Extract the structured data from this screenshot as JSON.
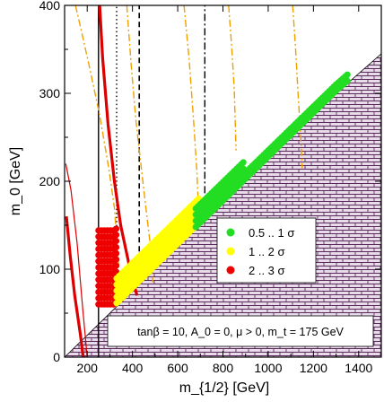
{
  "chart_data": {
    "type": "scatter",
    "title": "",
    "xlabel": "m_{1/2} [GeV]",
    "ylabel": "m_0 [GeV]",
    "xlim": [
      100,
      1500
    ],
    "ylim": [
      0,
      400
    ],
    "xticks": [
      200,
      400,
      600,
      800,
      1000,
      1200,
      1400
    ],
    "yticks": [
      0,
      100,
      200,
      300,
      400
    ],
    "xtick_labels": [
      "200",
      "400",
      "600",
      "800",
      "1000",
      "1200",
      "1400"
    ],
    "ytick_labels": [
      "0",
      "100",
      "200",
      "300",
      "400"
    ],
    "grid": false,
    "legend_position": "center-right",
    "legend": [
      {
        "label": "0.5 .. 1 σ",
        "color": "#22dd22"
      },
      {
        "label": "1 .. 2 σ",
        "color": "#ffff00"
      },
      {
        "label": "2 .. 3 σ",
        "color": "#ee0000"
      }
    ],
    "annotation": "tanβ = 10, A_0 = 0, μ > 0, m_t = 175 GeV",
    "excluded_region": {
      "description": "charged LSP region (hatched)",
      "fill": "#e9dcea",
      "boundary_x": [
        100,
        220,
        400,
        700,
        1000,
        1300,
        1500
      ],
      "boundary_y": [
        0,
        30,
        75,
        150,
        225,
        300,
        345
      ]
    },
    "series": [
      {
        "color": "#ee0000",
        "x_range": [
          250,
          330
        ],
        "y_range": [
          60,
          150
        ]
      },
      {
        "color": "#ffff00",
        "x_range": [
          330,
          700
        ],
        "y_range": [
          80,
          160
        ]
      },
      {
        "color": "#22dd22",
        "x_range": [
          680,
          1350
        ],
        "y_range": [
          150,
          325
        ]
      }
    ],
    "lines": [
      {
        "style": "solid",
        "color": "#000000",
        "x": [
          250,
          250
        ],
        "y": [
          0,
          400
        ]
      },
      {
        "style": "dotted",
        "color": "#000000",
        "x": [
          330,
          330
        ],
        "y": [
          80,
          400
        ]
      },
      {
        "style": "dashed",
        "color": "#000000",
        "x": [
          430,
          430
        ],
        "y": [
          110,
          400
        ]
      },
      {
        "style": "dashdot",
        "color": "#000000",
        "x": [
          720,
          720
        ],
        "y": [
          170,
          400
        ]
      },
      {
        "style": "solid-thick",
        "color": "#dd0000",
        "x": [
          255,
          268,
          292,
          320,
          348,
          385,
          420
        ],
        "y": [
          400,
          340,
          265,
          200,
          150,
          105,
          70
        ]
      },
      {
        "style": "solid-thick",
        "color": "#dd0000",
        "x": [
          108,
          125,
          145,
          170,
          182
        ],
        "y": [
          160,
          115,
          70,
          25,
          0
        ]
      },
      {
        "style": "solid-thin",
        "color": "#dd0000",
        "x": [
          105,
          128,
          155,
          180,
          200
        ],
        "y": [
          220,
          190,
          130,
          55,
          0
        ]
      },
      {
        "style": "dashdot",
        "color": "#f0a000",
        "x": [
          148,
          175,
          210,
          255,
          295,
          320,
          340
        ],
        "y": [
          400,
          370,
          330,
          275,
          215,
          170,
          100
        ]
      },
      {
        "style": "dashdot",
        "color": "#f0a000",
        "x": [
          375,
          395,
          415,
          450,
          480,
          490
        ],
        "y": [
          400,
          330,
          270,
          190,
          125,
          85
        ]
      },
      {
        "style": "dashdot",
        "color": "#f0a000",
        "x": [
          628,
          650,
          670,
          685,
          695
        ],
        "y": [
          400,
          340,
          270,
          210,
          150
        ]
      },
      {
        "style": "dashdot",
        "color": "#f0a000",
        "x": [
          825,
          838,
          850,
          858
        ],
        "y": [
          400,
          355,
          305,
          235
        ]
      },
      {
        "style": "dashdot",
        "color": "#f0a000",
        "x": [
          1108,
          1120,
          1132,
          1145,
          1150
        ],
        "y": [
          400,
          355,
          300,
          245,
          215
        ]
      }
    ]
  }
}
